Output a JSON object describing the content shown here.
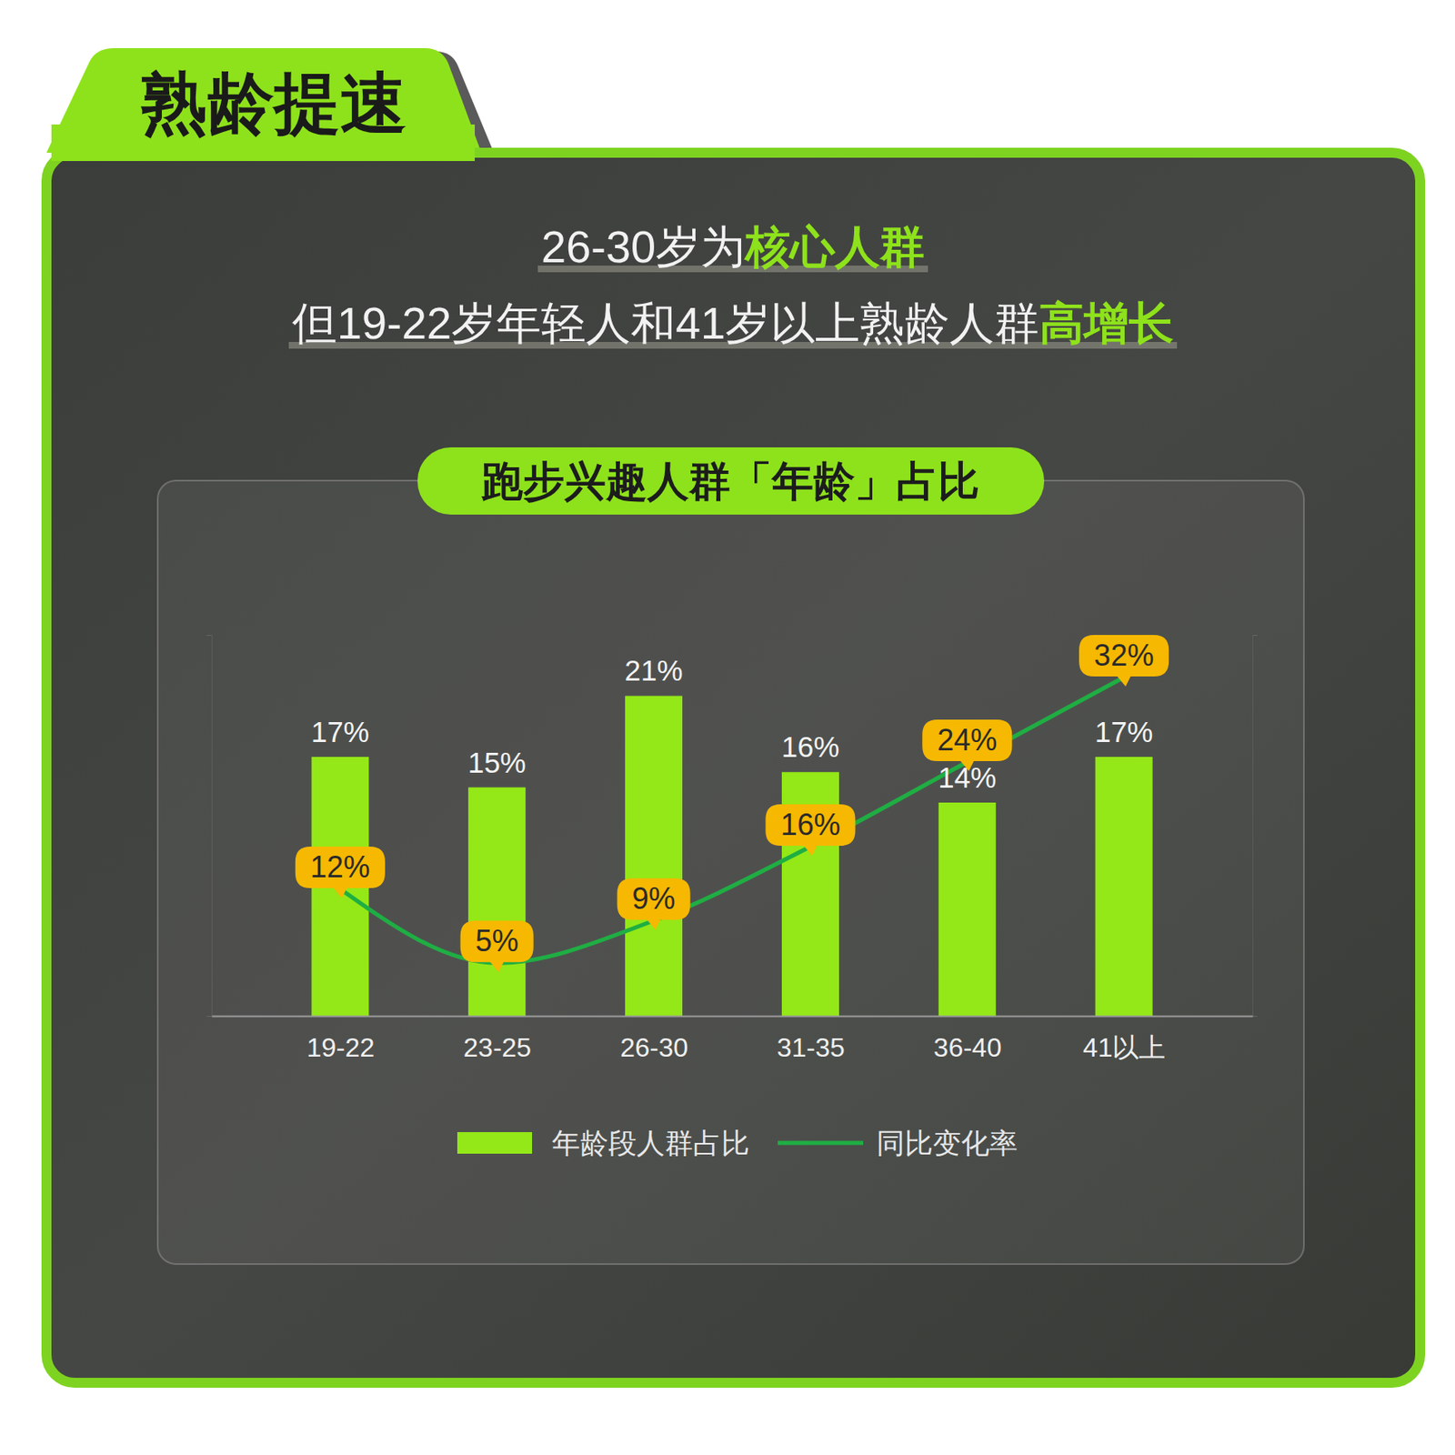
{
  "tab_title": "熟龄提速",
  "chart_data": {
    "type": "bar",
    "title": "跑步兴趣人群「年龄」占比",
    "subtitle": [
      [
        "26-30岁为",
        "核心人群"
      ],
      [
        "但19-22岁年轻人和41岁以上熟龄人群",
        "高增长"
      ]
    ],
    "categories": [
      "19-22",
      "23-25",
      "26-30",
      "31-35",
      "36-40",
      "41以上"
    ],
    "series": [
      {
        "name": "年龄段人群占比",
        "type": "bar",
        "color": "#94e817",
        "values": [
          17,
          15,
          21,
          16,
          14,
          17
        ],
        "value_labels": [
          "17%",
          "15%",
          "21%",
          "16%",
          "14%",
          "17%"
        ]
      },
      {
        "name": "同比变化率",
        "type": "line",
        "axis": "y2",
        "color": "#1fae43",
        "values": [
          12,
          5,
          9,
          16,
          24,
          32
        ],
        "value_labels": [
          "12%",
          "5%",
          "9%",
          "16%",
          "24%",
          "32%"
        ]
      }
    ],
    "ylim": [
      0,
      25
    ],
    "yticks": [
      0,
      25
    ],
    "y2lim": [
      0,
      36
    ],
    "y2ticks": [
      0,
      36
    ],
    "tick_labels": "x",
    "data_labels": true,
    "legend": "bottom"
  }
}
